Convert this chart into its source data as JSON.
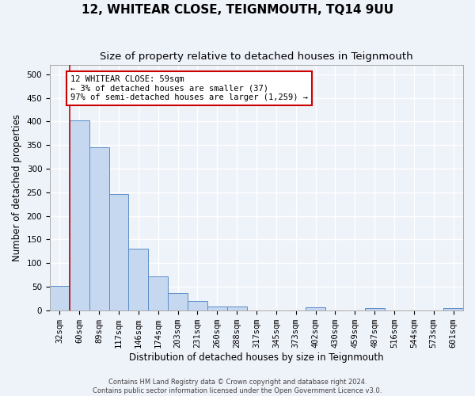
{
  "title": "12, WHITEAR CLOSE, TEIGNMOUTH, TQ14 9UU",
  "subtitle": "Size of property relative to detached houses in Teignmouth",
  "xlabel": "Distribution of detached houses by size in Teignmouth",
  "ylabel": "Number of detached properties",
  "bar_values": [
    52,
    403,
    345,
    247,
    130,
    71,
    36,
    20,
    8,
    8,
    0,
    0,
    0,
    7,
    0,
    0,
    5,
    0,
    0,
    0,
    5
  ],
  "categories": [
    "32sqm",
    "60sqm",
    "89sqm",
    "117sqm",
    "146sqm",
    "174sqm",
    "203sqm",
    "231sqm",
    "260sqm",
    "288sqm",
    "317sqm",
    "345sqm",
    "373sqm",
    "402sqm",
    "430sqm",
    "459sqm",
    "487sqm",
    "516sqm",
    "544sqm",
    "573sqm",
    "601sqm"
  ],
  "bar_color": "#c5d8f0",
  "bar_edge_color": "#5b8cc8",
  "annotation_box_text": "12 WHITEAR CLOSE: 59sqm\n← 3% of detached houses are smaller (37)\n97% of semi-detached houses are larger (1,259) →",
  "annotation_box_color": "#ffffff",
  "annotation_box_edge_color": "#cc0000",
  "vline_x_index": 1,
  "vline_color": "#cc0000",
  "ylim": [
    0,
    520
  ],
  "yticks": [
    0,
    50,
    100,
    150,
    200,
    250,
    300,
    350,
    400,
    450,
    500
  ],
  "footer_line1": "Contains HM Land Registry data © Crown copyright and database right 2024.",
  "footer_line2": "Contains public sector information licensed under the Open Government Licence v3.0.",
  "background_color": "#eef2f9",
  "grid_color": "#ffffff",
  "title_fontsize": 11,
  "subtitle_fontsize": 9.5,
  "tick_fontsize": 7.5,
  "label_fontsize": 8.5
}
